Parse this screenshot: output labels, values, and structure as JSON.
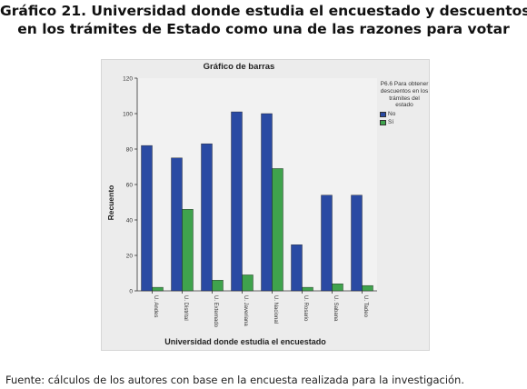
{
  "page": {
    "title_line1": "Gráfico 21. Universidad donde estudia el encuestado y descuentos",
    "title_line2": "en los trámites de Estado como una de las razones para votar",
    "source_note": "Fuente: cálculos de los autores con base en la encuesta realizada para la investigación."
  },
  "chart_data": {
    "type": "bar",
    "title": "Gráfico de barras",
    "xlabel": "Universidad donde estudia el encuestado",
    "ylabel": "Recuento",
    "ylim": [
      0,
      120
    ],
    "yticks": [
      "0",
      "20",
      "40",
      "60",
      "80",
      "100",
      "120"
    ],
    "grid": false,
    "legend_position": "right",
    "legend_title": "P6.6 Para obtener descuentos en los trámites del estado",
    "categories": [
      "U. Andes",
      "U. Distrital",
      "U. Externado",
      "U. Javeriana",
      "U. Nacional",
      "U. Rosario",
      "U. Sabana",
      "U. Tadeo"
    ],
    "series": [
      {
        "name": "No",
        "color": "#2a4aa3",
        "values": [
          82,
          75,
          83,
          101,
          100,
          26,
          54,
          54
        ]
      },
      {
        "name": "Sí",
        "color": "#3fa34d",
        "values": [
          2,
          46,
          6,
          9,
          69,
          2,
          4,
          3
        ]
      }
    ]
  }
}
